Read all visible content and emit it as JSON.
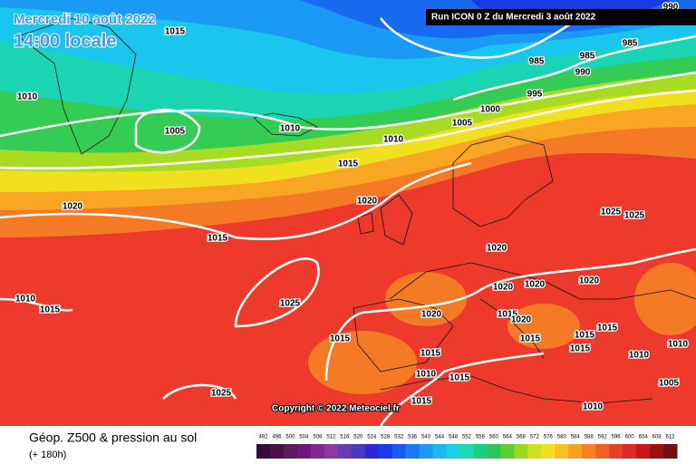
{
  "header": {
    "date": "Mercredi 10 août 2022",
    "time": "14:00 locale",
    "run": "Run ICON 0 Z du Mercredi 3 août 2022"
  },
  "isobar_labels": [
    "990",
    "1015",
    "985",
    "985",
    "985",
    "990",
    "995",
    "1010",
    "1000",
    "1005",
    "1005",
    "1010",
    "1010",
    "1015",
    "1020",
    "1020",
    "1025",
    "1025",
    "1015",
    "1020",
    "1010",
    "1015",
    "1025",
    "1020",
    "1020",
    "1020",
    "1020",
    "1015",
    "1020",
    "1015",
    "1015",
    "1015",
    "1015",
    "1015",
    "1015",
    "1010",
    "1010",
    "1010",
    "1015",
    "1005",
    "1025",
    "1015",
    "1010"
  ],
  "copyright": "Copyright © 2022 Meteociel.fr",
  "footer": {
    "title": "Géop. Z500 & pression au sol",
    "lead": "(+ 180h)"
  },
  "colorbar": {
    "labels": [
      492,
      496,
      500,
      504,
      508,
      512,
      516,
      520,
      524,
      528,
      532,
      536,
      540,
      544,
      548,
      552,
      556,
      560,
      564,
      568,
      572,
      576,
      580,
      584,
      588,
      592,
      596,
      600,
      604,
      608,
      612
    ],
    "colors": [
      "#3a0a3a",
      "#4b0f4b",
      "#5e1a5e",
      "#6e1a7a",
      "#7e2a8e",
      "#8a3aa0",
      "#6a3ab0",
      "#4a3ac0",
      "#2a2ad0",
      "#1a3ae8",
      "#1a5af0",
      "#1a7af5",
      "#1a9af5",
      "#1abaf0",
      "#1ad0e0",
      "#1ad8b0",
      "#1ad080",
      "#2ac850",
      "#5ad030",
      "#9ad820",
      "#d0e020",
      "#f0e020",
      "#f8c020",
      "#f8a020",
      "#f88020",
      "#f06020",
      "#e84028",
      "#e02828",
      "#c81818",
      "#a01010",
      "#701010"
    ]
  }
}
